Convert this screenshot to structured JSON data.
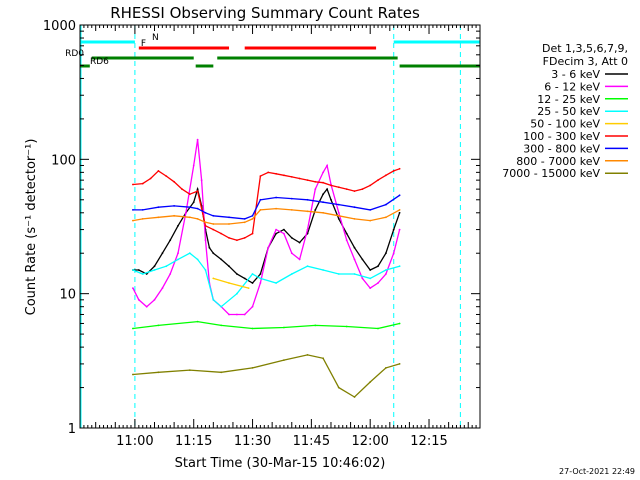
{
  "chart_data": {
    "type": "line",
    "title": "RHESSI Observing Summary Count Rates",
    "xlabel": "Start Time (30-Mar-15 10:46:02)",
    "ylabel": "Count Rate (s⁻¹ detector⁻¹)",
    "x_unit": "minutes since 10:46:02",
    "xlim": [
      0,
      102
    ],
    "ylim": [
      1,
      1000
    ],
    "y_scale": "log",
    "x_ticks": [
      {
        "t": 14,
        "label": "11:00"
      },
      {
        "t": 29,
        "label": "11:15"
      },
      {
        "t": 44,
        "label": "11:30"
      },
      {
        "t": 59,
        "label": "11:45"
      },
      {
        "t": 74,
        "label": "12:00"
      },
      {
        "t": 89,
        "label": "12:15"
      }
    ],
    "y_ticks": [
      {
        "v": 1,
        "label": "1"
      },
      {
        "v": 10,
        "label": "10"
      },
      {
        "v": 100,
        "label": "100"
      },
      {
        "v": 1000,
        "label": "1000"
      }
    ],
    "legend_header": [
      "Det 1,3,5,6,7,9,",
      "FDecim 3, Att 0"
    ],
    "legend_position": "right",
    "series": [
      {
        "name": "3 - 6 keV",
        "color": "#000000",
        "x": [
          13.5,
          15,
          17,
          19,
          21,
          23,
          25,
          27,
          29,
          30,
          31,
          32,
          33,
          34,
          36,
          38,
          40,
          42,
          44,
          46,
          48,
          50,
          52,
          54,
          56,
          58,
          60,
          62,
          63,
          64,
          66,
          68,
          70,
          72,
          74,
          76,
          78,
          80,
          81.5
        ],
        "y": [
          15,
          15,
          14,
          16,
          20,
          25,
          32,
          40,
          48,
          60,
          45,
          30,
          22,
          20,
          18,
          16,
          14,
          13,
          12,
          14,
          22,
          28,
          30,
          26,
          24,
          28,
          42,
          55,
          60,
          50,
          36,
          28,
          22,
          18,
          15,
          16,
          20,
          30,
          40
        ]
      },
      {
        "name": "6 - 12 keV",
        "color": "#ff00ff",
        "x": [
          13.5,
          15,
          17,
          19,
          21,
          23,
          25,
          27,
          29,
          30,
          31,
          32,
          33,
          34,
          36,
          38,
          40,
          42,
          44,
          46,
          48,
          50,
          52,
          54,
          56,
          58,
          60,
          62,
          63,
          64,
          66,
          68,
          70,
          72,
          74,
          76,
          78,
          80,
          81.5
        ],
        "y": [
          11,
          9,
          8,
          9,
          11,
          14,
          20,
          40,
          90,
          140,
          70,
          25,
          12,
          9,
          8,
          7,
          7,
          7,
          8,
          12,
          22,
          30,
          28,
          20,
          18,
          30,
          60,
          80,
          90,
          65,
          40,
          25,
          18,
          13,
          11,
          12,
          14,
          20,
          30
        ]
      },
      {
        "name": "12 - 25 keV",
        "color": "#00ff00",
        "x": [
          13.5,
          20,
          30,
          36,
          44,
          52,
          60,
          68,
          76,
          81.5
        ],
        "y": [
          5.5,
          5.8,
          6.2,
          5.8,
          5.5,
          5.6,
          5.8,
          5.7,
          5.5,
          6
        ]
      },
      {
        "name": "25 - 50 keV",
        "color": "#00ffff",
        "x": [
          13.5,
          16,
          19,
          22,
          25,
          28,
          30,
          32,
          34,
          36,
          40,
          44,
          46,
          50,
          54,
          58,
          62,
          66,
          70,
          74,
          78,
          81.5
        ],
        "y": [
          15,
          14,
          15,
          16,
          18,
          20,
          18,
          15,
          9,
          8,
          10,
          14,
          13,
          12,
          14,
          16,
          15,
          14,
          14,
          13,
          15,
          16
        ]
      },
      {
        "name": "50 - 100 keV",
        "color": "#ffcc00",
        "x": [
          34,
          38,
          43
        ],
        "y": [
          13,
          12,
          11
        ]
      },
      {
        "name": "100 - 300 keV",
        "color": "#ff0000",
        "x": [
          13.5,
          16,
          18,
          20,
          22,
          24,
          26,
          28,
          30,
          32,
          34,
          36,
          38,
          40,
          42,
          44,
          46,
          48,
          50,
          52,
          54,
          56,
          58,
          60,
          62,
          64,
          66,
          68,
          70,
          72,
          74,
          76,
          78,
          80,
          81.5
        ],
        "y": [
          65,
          66,
          72,
          82,
          75,
          68,
          60,
          55,
          58,
          32,
          30,
          28,
          26,
          25,
          26,
          28,
          75,
          80,
          78,
          76,
          74,
          72,
          70,
          68,
          67,
          64,
          62,
          60,
          58,
          60,
          64,
          70,
          76,
          82,
          85
        ]
      },
      {
        "name": "300 - 800 keV",
        "color": "#0000ff",
        "x": [
          13.5,
          16,
          20,
          24,
          28,
          30,
          32,
          34,
          38,
          42,
          44,
          46,
          50,
          54,
          58,
          62,
          66,
          70,
          74,
          78,
          81.5
        ],
        "y": [
          42,
          42,
          44,
          45,
          44,
          43,
          40,
          38,
          37,
          36,
          38,
          50,
          52,
          51,
          50,
          48,
          46,
          44,
          42,
          46,
          54
        ]
      },
      {
        "name": "800 - 7000 keV",
        "color": "#ff8800",
        "x": [
          13.5,
          16,
          20,
          24,
          28,
          30,
          32,
          34,
          38,
          42,
          44,
          46,
          50,
          54,
          58,
          62,
          66,
          70,
          74,
          78,
          81.5
        ],
        "y": [
          35,
          36,
          37,
          38,
          37,
          36,
          34,
          33,
          33,
          34,
          36,
          42,
          43,
          42,
          41,
          40,
          38,
          36,
          35,
          37,
          42
        ]
      },
      {
        "name": "7000 - 15000 keV",
        "color": "#808000",
        "x": [
          13.5,
          20,
          28,
          36,
          44,
          52,
          58,
          62,
          66,
          70,
          74,
          78,
          81.5
        ],
        "y": [
          2.5,
          2.6,
          2.7,
          2.6,
          2.8,
          3.2,
          3.5,
          3.3,
          2.0,
          1.7,
          2.2,
          2.8,
          3
        ]
      }
    ],
    "annotations": [
      {
        "label": "N",
        "color": "#00ffff",
        "segments": [
          [
            0,
            14
          ],
          [
            80,
            102
          ]
        ]
      },
      {
        "label": "F",
        "color": "#ff0000",
        "segments": [
          [
            15,
            38
          ],
          [
            42,
            75.5
          ]
        ]
      },
      {
        "label": "RD0",
        "color": "#008000",
        "segments": [
          [
            3,
            29
          ],
          [
            35,
            81
          ]
        ]
      },
      {
        "label": "RD6",
        "color": "#008000",
        "segments": [
          [
            0,
            2.5
          ],
          [
            29.5,
            34
          ],
          [
            81.5,
            102
          ]
        ]
      }
    ],
    "saa_marker_lines_x": [
      14,
      80
    ],
    "night_marker_lines_x": [
      0,
      97
    ]
  },
  "footer_timestamp": "27-Oct-2021 22:49"
}
